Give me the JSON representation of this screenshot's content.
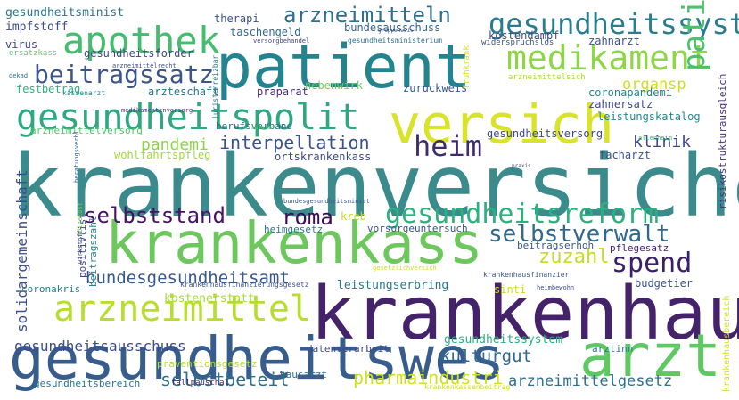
{
  "chart_data": {
    "type": "wordcloud",
    "title": "",
    "colormap": "viridis",
    "words": [
      {
        "text": "krankenversicher",
        "color": "#3b8a8c"
      },
      {
        "text": "krankenhaus",
        "color": "#45236a"
      },
      {
        "text": "gesundheitswes",
        "color": "#375d8c"
      },
      {
        "text": "patient",
        "color": "#23838e"
      },
      {
        "text": "krankenkass",
        "color": "#6cc85c"
      },
      {
        "text": "versich",
        "color": "#d8e32a"
      },
      {
        "text": "arzt",
        "color": "#5ec962"
      },
      {
        "text": "gesundheitspolit",
        "color": "#2ea87e"
      },
      {
        "text": "arzneimittel",
        "color": "#b7de2d"
      },
      {
        "text": "apothek",
        "color": "#44bd6e"
      },
      {
        "text": "gesundheitsreform",
        "color": "#2cb17e"
      },
      {
        "text": "medikament",
        "color": "#8ed645"
      },
      {
        "text": "gesundheitssyst",
        "color": "#2b7d8e"
      },
      {
        "text": "heim",
        "color": "#3e2a6e"
      },
      {
        "text": "patientinn",
        "color": "#4ac16d"
      },
      {
        "text": "spend",
        "color": "#3a1f6a"
      },
      {
        "text": "beitragssatz",
        "color": "#3a548c"
      },
      {
        "text": "arzneimitteln",
        "color": "#2e6e8e"
      },
      {
        "text": "selbststand",
        "color": "#471365"
      },
      {
        "text": "selbstverwalt",
        "color": "#31688e"
      },
      {
        "text": "roma",
        "color": "#3e0c57"
      },
      {
        "text": "interpellation",
        "color": "#3a528b"
      },
      {
        "text": "bundesgesundheitsamt",
        "color": "#38598c"
      },
      {
        "text": "zuzahl",
        "color": "#c2df23"
      },
      {
        "text": "kulturgut",
        "color": "#31678e"
      },
      {
        "text": "selbstbeteil",
        "color": "#2d708e"
      },
      {
        "text": "pharmaindustri",
        "color": "#cde11d"
      },
      {
        "text": "arzneimittelgesetz",
        "color": "#2c728e"
      },
      {
        "text": "pandemi",
        "color": "#8bd646"
      },
      {
        "text": "klinik",
        "color": "#3f4788"
      },
      {
        "text": "organsp",
        "color": "#d0e11c"
      },
      {
        "text": "gesundheitsausschuss",
        "color": "#3d4e8a"
      },
      {
        "text": "solidargemeinschaft",
        "color": "#3c4f8a"
      },
      {
        "text": "gesundheitssystem",
        "color": "#28ae80"
      },
      {
        "text": "leistungserbring",
        "color": "#2a788e"
      },
      {
        "text": "kostenerstatt",
        "color": "#a5db36"
      },
      {
        "text": "risikostrukturausgleich",
        "color": "#46327e"
      },
      {
        "text": "ortskrankenkass",
        "color": "#3f4889"
      },
      {
        "text": "gesundheitsministerium",
        "color": "#2c728e"
      },
      {
        "text": "kostendampf",
        "color": "#404688"
      },
      {
        "text": "impfstoff",
        "color": "#3e4a89"
      },
      {
        "text": "gesundheitsminist",
        "color": "#2a778e"
      },
      {
        "text": "gesundheitsforder",
        "color": "#3f4788"
      },
      {
        "text": "zahnarzt",
        "color": "#3c508b"
      },
      {
        "text": "zahnersatz",
        "color": "#3f4788"
      },
      {
        "text": "leistungskatalog",
        "color": "#24868e"
      },
      {
        "text": "coronapandemi",
        "color": "#25848e"
      },
      {
        "text": "festbetrag",
        "color": "#2db27d"
      },
      {
        "text": "arzteschaft",
        "color": "#2c738e"
      },
      {
        "text": "praparat",
        "color": "#472c7a"
      },
      {
        "text": "zuruckweis",
        "color": "#39558c"
      },
      {
        "text": "nebenwirk",
        "color": "#6ccd5a"
      },
      {
        "text": "gesundheitsversorg",
        "color": "#3f4889"
      },
      {
        "text": "facharzt",
        "color": "#3b528b"
      },
      {
        "text": "bundesausschuss",
        "color": "#33638d"
      },
      {
        "text": "taschengeld",
        "color": "#2f6b8e"
      },
      {
        "text": "therapi",
        "color": "#3b528b"
      },
      {
        "text": "virus",
        "color": "#3e4989"
      },
      {
        "text": "wohlfahrtspfleg",
        "color": "#a2da37"
      },
      {
        "text": "arzneimittelversorg",
        "color": "#4fc46a"
      },
      {
        "text": "berufsverband",
        "color": "#2f6c8e"
      },
      {
        "text": "kreb",
        "color": "#bade28"
      },
      {
        "text": "vorsorgeuntersuch",
        "color": "#3a548c"
      },
      {
        "text": "heimgesetz",
        "color": "#2a788e"
      },
      {
        "text": "beitragserhoh",
        "color": "#38598c"
      },
      {
        "text": "pflegesatz",
        "color": "#482173"
      },
      {
        "text": "beitragszahl",
        "color": "#26828e"
      },
      {
        "text": "positivlist",
        "color": "#3f4788"
      },
      {
        "text": "coronakris",
        "color": "#25848e"
      },
      {
        "text": "sinti",
        "color": "#c8e020"
      },
      {
        "text": "budgetier",
        "color": "#3b528b"
      },
      {
        "text": "praventionsgesetz",
        "color": "#b5de2b"
      },
      {
        "text": "datenverarbeit",
        "color": "#3e4989"
      },
      {
        "text": "arztinn",
        "color": "#2a788e"
      },
      {
        "text": "hausarzt",
        "color": "#2e6f8e"
      },
      {
        "text": "gesundheitsbereich",
        "color": "#2d718e"
      },
      {
        "text": "fallpauschal",
        "color": "#481f70"
      },
      {
        "text": "krankenkassenbeitrag",
        "color": "#cfe11c"
      },
      {
        "text": "krankenhausbereich",
        "color": "#d2e21b"
      },
      {
        "text": "krankenhausfinanzier",
        "color": "#3a538b"
      },
      {
        "text": "krankenhausfinanzierungsgesetz",
        "color": "#3b528b"
      },
      {
        "text": "ersatzkass",
        "color": "#5cc863"
      },
      {
        "text": "kassenarzt",
        "color": "#238a8d"
      },
      {
        "text": "dekad",
        "color": "#2c728e"
      },
      {
        "text": "arzneimittelrecht",
        "color": "#3c4f8a"
      },
      {
        "text": "widerspruchslos",
        "color": "#3b528b"
      },
      {
        "text": "versorgbehandel",
        "color": "#414487"
      },
      {
        "text": "fruhkrank",
        "color": "#d5e21a"
      },
      {
        "text": "arzneimittelsich",
        "color": "#addc30"
      },
      {
        "text": "allenheim",
        "color": "#35b779"
      },
      {
        "text": "medikamentenversorg",
        "color": "#453581"
      },
      {
        "text": "juristenreizbar",
        "color": "#2a778e"
      },
      {
        "text": "bundesgesundheitsminist",
        "color": "#3a548c"
      },
      {
        "text": "beratungsverbl",
        "color": "#375a8c"
      },
      {
        "text": "heimbewohn",
        "color": "#3d4e8a"
      },
      {
        "text": "wirkstoff",
        "color": "#3e4989"
      },
      {
        "text": "folgekost",
        "color": "#6ece58"
      },
      {
        "text": "gesetzlichversich",
        "color": "#cae11f"
      },
      {
        "text": "praxis",
        "color": "#3f4788"
      },
      {
        "text": "gruppenweis",
        "color": "#3b528b"
      },
      {
        "text": "ambulant",
        "color": "#5ec962"
      }
    ]
  }
}
